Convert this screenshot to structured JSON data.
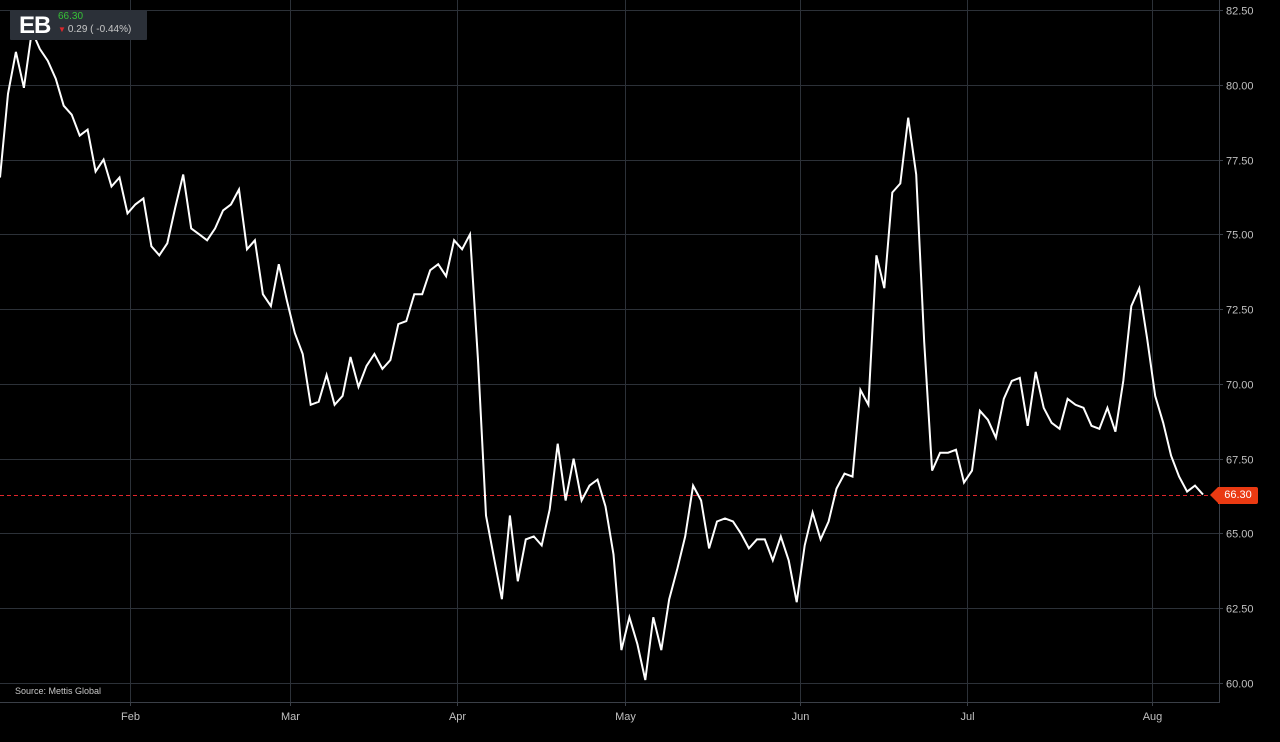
{
  "badge": {
    "symbol": "EB",
    "price": "66.30",
    "change": "0.29 ( -0.44%)",
    "direction_icon": "triangle-down-icon",
    "price_color": "#36c236",
    "down_color": "#e0262b"
  },
  "source": "Source: Mettis Global",
  "last_price_label": "66.30",
  "chart_data": {
    "type": "line",
    "title": "",
    "xlabel": "",
    "ylabel": "",
    "x_ticks": [
      "Feb",
      "Mar",
      "Apr",
      "May",
      "Jun",
      "Jul",
      "Aug"
    ],
    "y_ticks": [
      "60.00",
      "62.50",
      "65.00",
      "67.50",
      "70.00",
      "72.50",
      "75.00",
      "77.50",
      "80.00",
      "82.50"
    ],
    "ylim": [
      60,
      82.5
    ],
    "grid": true,
    "last_value": 66.3,
    "line_color": "#ffffff",
    "last_price_line_color": "#e0262b",
    "series": [
      {
        "values": [
          76.9,
          79.7,
          81.1,
          79.9,
          81.8,
          81.2,
          80.8,
          80.2,
          79.3,
          79.0,
          78.3,
          78.5,
          77.1,
          77.5,
          76.6,
          76.9,
          75.7,
          76.0,
          76.2,
          74.6,
          74.3,
          74.7,
          75.9,
          77.0,
          75.2,
          75.0,
          74.8,
          75.2,
          75.8,
          76.0,
          76.5,
          74.5,
          74.8,
          73.0,
          72.6,
          74.0,
          72.8,
          71.7,
          71.0,
          69.3,
          69.4,
          70.3,
          69.3,
          69.6,
          70.9,
          69.9,
          70.6,
          71.0,
          70.5,
          70.8,
          72.0,
          72.1,
          73.0,
          73.0,
          73.8,
          74.0,
          73.6,
          74.8,
          74.5,
          75.0,
          70.8,
          65.6,
          64.2,
          62.8,
          65.6,
          63.4,
          64.8,
          64.9,
          64.6,
          65.8,
          68.0,
          66.1,
          67.5,
          66.1,
          66.6,
          66.8,
          65.9,
          64.3,
          61.1,
          62.2,
          61.3,
          60.1,
          62.2,
          61.1,
          62.8,
          63.8,
          64.9,
          66.6,
          66.1,
          64.5,
          65.4,
          65.5,
          65.4,
          65.0,
          64.5,
          64.8,
          64.8,
          64.1,
          64.9,
          64.1,
          62.7,
          64.6,
          65.7,
          64.8,
          65.4,
          66.5,
          67.0,
          66.9,
          69.8,
          69.3,
          74.3,
          73.2,
          76.4,
          76.7,
          78.9,
          77.0,
          71.4,
          67.1,
          67.7,
          67.7,
          67.8,
          66.7,
          67.1,
          69.1,
          68.8,
          68.2,
          69.5,
          70.1,
          70.2,
          68.6,
          70.4,
          69.2,
          68.7,
          68.5,
          69.5,
          69.3,
          69.2,
          68.6,
          68.5,
          69.2,
          68.4,
          70.1,
          72.6,
          73.2,
          71.5,
          69.6,
          68.7,
          67.6,
          66.9,
          66.4,
          66.6,
          66.3
        ]
      }
    ]
  }
}
